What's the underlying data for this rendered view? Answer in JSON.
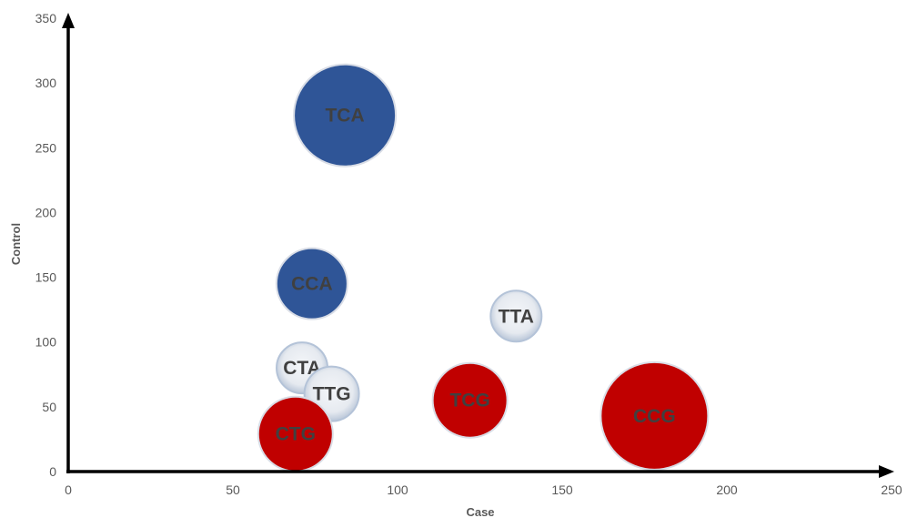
{
  "chart_data": {
    "type": "bubble",
    "title": "",
    "xlabel": "Case",
    "ylabel": "Control",
    "xlim": [
      0,
      250
    ],
    "ylim": [
      0,
      350
    ],
    "xticks": [
      "0",
      "50",
      "100",
      "150",
      "200",
      "250"
    ],
    "yticks": [
      "0",
      "50",
      "100",
      "150",
      "200",
      "250",
      "300",
      "350"
    ],
    "grid": false,
    "legend": "none",
    "colors": {
      "blue": "#2f5597",
      "red": "#c00000",
      "white": "#e7ebf2",
      "dark_text": "#404040",
      "axis": "#000000"
    },
    "points": [
      {
        "label": "TCA",
        "x": 84,
        "y": 275,
        "size": 56,
        "color": "blue"
      },
      {
        "label": "CCA",
        "x": 74,
        "y": 145,
        "size": 39,
        "color": "blue"
      },
      {
        "label": "TTA",
        "x": 136,
        "y": 120,
        "size": 28,
        "color": "white"
      },
      {
        "label": "CTA",
        "x": 71,
        "y": 80,
        "size": 28,
        "color": "white"
      },
      {
        "label": "TTG",
        "x": 80,
        "y": 60,
        "size": 30,
        "color": "white"
      },
      {
        "label": "TCG",
        "x": 122,
        "y": 55,
        "size": 41,
        "color": "red"
      },
      {
        "label": "CTG",
        "x": 69,
        "y": 29,
        "size": 41,
        "color": "red"
      },
      {
        "label": "CCG",
        "x": 178,
        "y": 43,
        "size": 59,
        "color": "red"
      }
    ]
  }
}
